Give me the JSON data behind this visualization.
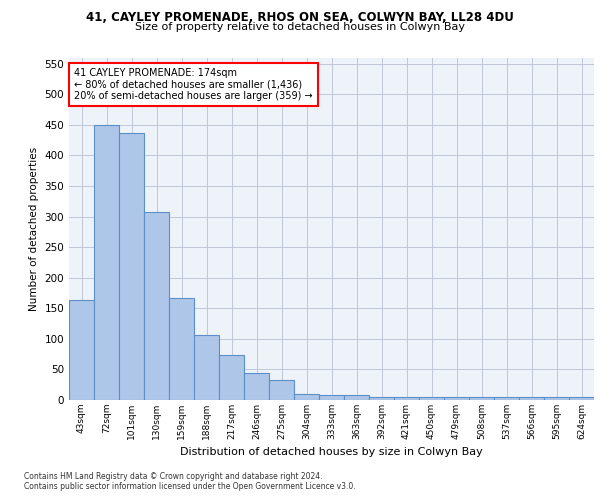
{
  "title1": "41, CAYLEY PROMENADE, RHOS ON SEA, COLWYN BAY, LL28 4DU",
  "title2": "Size of property relative to detached houses in Colwyn Bay",
  "xlabel": "Distribution of detached houses by size in Colwyn Bay",
  "ylabel": "Number of detached properties",
  "footer1": "Contains HM Land Registry data © Crown copyright and database right 2024.",
  "footer2": "Contains public sector information licensed under the Open Government Licence v3.0.",
  "annotation_line1": "41 CAYLEY PROMENADE: 174sqm",
  "annotation_line2": "← 80% of detached houses are smaller (1,436)",
  "annotation_line3": "20% of semi-detached houses are larger (359) →",
  "categories": [
    "43sqm",
    "72sqm",
    "101sqm",
    "130sqm",
    "159sqm",
    "188sqm",
    "217sqm",
    "246sqm",
    "275sqm",
    "304sqm",
    "333sqm",
    "363sqm",
    "392sqm",
    "421sqm",
    "450sqm",
    "479sqm",
    "508sqm",
    "537sqm",
    "566sqm",
    "595sqm",
    "624sqm"
  ],
  "values": [
    163,
    450,
    437,
    307,
    167,
    106,
    74,
    44,
    33,
    10,
    8,
    8,
    5,
    5,
    5,
    5,
    5,
    5,
    5,
    5,
    5
  ],
  "bar_color": "#aec6e8",
  "bar_edge_color": "#5b8fc9",
  "plot_bg_color": "#eef3fa",
  "grid_color": "#c0c8d8",
  "ylim": [
    0,
    560
  ],
  "yticks": [
    0,
    50,
    100,
    150,
    200,
    250,
    300,
    350,
    400,
    450,
    500,
    550
  ]
}
